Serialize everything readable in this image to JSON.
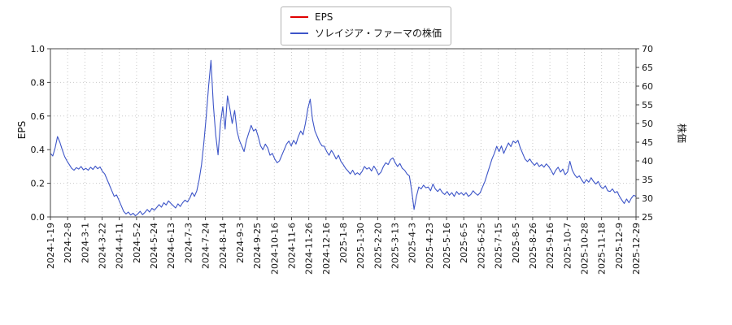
{
  "chart_data": {
    "type": "line",
    "title": "",
    "grid": true,
    "legend_position": "top-center",
    "legend": [
      {
        "label": "EPS",
        "color": "#e00000"
      },
      {
        "label": "ソレイジア・ファーマの株価",
        "color": "#3d55c8"
      }
    ],
    "left_axis": {
      "label": "EPS",
      "min": 0.0,
      "max": 1.0,
      "tick_labels": [
        "0.0",
        "0.2",
        "0.4",
        "0.6",
        "0.8",
        "1.0"
      ],
      "tick_values": [
        0.0,
        0.2,
        0.4,
        0.6,
        0.8,
        1.0
      ]
    },
    "right_axis": {
      "label": "株価",
      "min": 25,
      "max": 70,
      "tick_labels": [
        "25",
        "30",
        "35",
        "40",
        "45",
        "50",
        "55",
        "60",
        "65",
        "70"
      ],
      "tick_values": [
        25,
        30,
        35,
        40,
        45,
        50,
        55,
        60,
        65,
        70
      ]
    },
    "x_tick_labels": [
      "2024-1-19",
      "2024-2-8",
      "2024-3-1",
      "2024-3-22",
      "2024-4-11",
      "2024-5-2",
      "2024-5-24",
      "2024-6-13",
      "2024-7-3",
      "2024-7-24",
      "2024-8-14",
      "2024-9-3",
      "2024-9-25",
      "2024-10-16",
      "2024-11-6",
      "2024-11-26",
      "2024-12-16",
      "2025-1-8",
      "2025-1-30",
      "2025-2-20",
      "2025-3-13",
      "2025-4-3",
      "2025-4-23",
      "2025-5-16",
      "2025-6-5",
      "2025-6-25",
      "2025-7-15",
      "2025-8-5",
      "2025-8-26",
      "2025-9-16",
      "2025-10-7",
      "2025-10-28",
      "2025-11-18",
      "2025-12-9",
      "2025-12-29"
    ],
    "series": [
      {
        "name": "EPS",
        "color": "#e00000",
        "axis": "left",
        "values": []
      },
      {
        "name": "ソレイジア・ファーマの株価",
        "color": "#3d55c8",
        "axis": "right",
        "values": [
          42.0,
          41.3,
          43.5,
          46.5,
          45.0,
          43.0,
          41.2,
          40.0,
          39.0,
          38.0,
          37.5,
          38.2,
          37.8,
          38.5,
          37.6,
          38.0,
          37.5,
          38.3,
          37.7,
          38.6,
          37.9,
          38.4,
          37.2,
          36.5,
          35.0,
          33.5,
          32.0,
          30.5,
          30.9,
          29.5,
          28.0,
          26.5,
          25.8,
          26.3,
          25.5,
          26.0,
          25.3,
          25.8,
          26.5,
          25.6,
          26.2,
          27.0,
          26.3,
          27.3,
          26.8,
          27.5,
          28.3,
          27.6,
          28.8,
          28.2,
          29.3,
          28.6,
          28.0,
          27.4,
          28.5,
          27.8,
          28.8,
          29.5,
          29.0,
          30.0,
          31.5,
          30.5,
          32.0,
          35.0,
          39.0,
          45.0,
          52.0,
          60.0,
          66.9,
          55.0,
          47.0,
          41.6,
          50.0,
          54.5,
          48.5,
          57.4,
          54.0,
          50.0,
          53.5,
          48.0,
          45.5,
          44.0,
          42.5,
          45.5,
          47.5,
          49.5,
          48.0,
          48.5,
          46.5,
          44.0,
          43.0,
          44.5,
          43.5,
          41.5,
          42.0,
          40.5,
          39.5,
          40.0,
          41.5,
          43.0,
          44.5,
          45.3,
          44.0,
          45.5,
          44.5,
          46.5,
          48.0,
          47.0,
          50.0,
          54.0,
          56.5,
          51.0,
          48.0,
          46.5,
          45.0,
          44.0,
          43.9,
          42.5,
          41.5,
          42.8,
          41.8,
          40.5,
          41.5,
          39.9,
          39.0,
          38.0,
          37.3,
          36.5,
          37.5,
          36.3,
          36.8,
          36.3,
          37.2,
          38.5,
          37.8,
          38.2,
          37.3,
          38.6,
          37.6,
          36.3,
          37.0,
          38.5,
          39.5,
          39.0,
          40.3,
          40.8,
          39.5,
          38.5,
          39.3,
          38.0,
          37.5,
          36.5,
          36.0,
          32.0,
          27.0,
          30.5,
          33.0,
          32.5,
          33.5,
          32.8,
          33.0,
          32.0,
          33.8,
          32.5,
          31.8,
          32.5,
          31.5,
          31.0,
          31.8,
          30.8,
          31.5,
          30.5,
          31.8,
          31.0,
          31.5,
          30.8,
          31.5,
          30.5,
          31.0,
          32.0,
          31.3,
          30.8,
          31.5,
          33.0,
          34.5,
          36.5,
          38.5,
          40.5,
          42.0,
          43.9,
          42.5,
          44.0,
          42.0,
          43.5,
          44.8,
          43.8,
          45.3,
          44.8,
          45.5,
          43.5,
          42.0,
          40.5,
          39.8,
          40.5,
          39.5,
          38.8,
          39.5,
          38.5,
          39.0,
          38.3,
          39.2,
          38.5,
          37.5,
          36.3,
          37.5,
          38.3,
          37.0,
          37.8,
          36.3,
          37.0,
          39.9,
          37.5,
          36.3,
          35.5,
          36.0,
          34.9,
          34.0,
          35.0,
          34.3,
          35.5,
          34.5,
          33.8,
          34.5,
          33.1,
          32.6,
          33.3,
          32.0,
          31.8,
          32.5,
          31.5,
          31.8,
          30.5,
          29.5,
          28.6,
          29.8,
          28.8,
          30.0,
          30.8,
          30.5
        ]
      }
    ]
  }
}
